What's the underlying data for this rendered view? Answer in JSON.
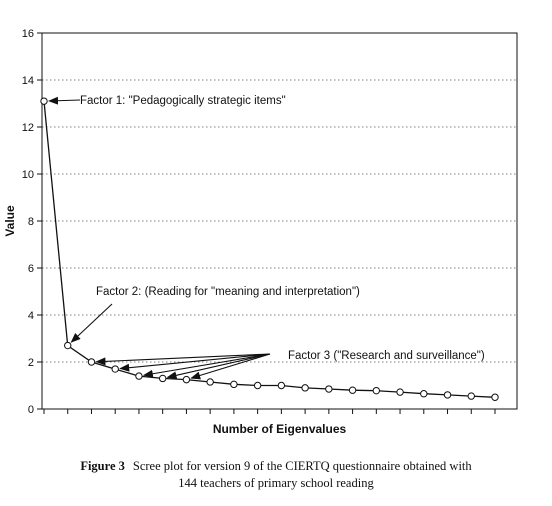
{
  "chart_data": {
    "type": "line",
    "xlabel": "Number of Eigenvalues",
    "ylabel": "Value",
    "ylim": [
      0,
      16
    ],
    "yticks": [
      0,
      2,
      4,
      6,
      8,
      10,
      12,
      14,
      16
    ],
    "xticks_labeled": false,
    "grid": "horizontal dotted",
    "x": [
      1,
      2,
      3,
      4,
      5,
      6,
      7,
      8,
      9,
      10,
      11,
      12,
      13,
      14,
      15,
      16,
      17,
      18,
      19,
      20
    ],
    "values": [
      13.1,
      2.7,
      2.0,
      1.7,
      1.4,
      1.3,
      1.25,
      1.15,
      1.05,
      1.0,
      1.0,
      0.9,
      0.85,
      0.8,
      0.78,
      0.72,
      0.65,
      0.6,
      0.55,
      0.5
    ],
    "annotations": [
      {
        "text": "Factor 1: \"Pedagogically strategic items\"",
        "points_to": [
          1
        ]
      },
      {
        "text": "Factor 2:  (Reading for \"meaning and interpretation\")",
        "points_to": [
          2
        ]
      },
      {
        "text": "Factor 3 (\"Research and surveillance\")",
        "points_to": [
          3,
          4,
          5,
          6,
          7
        ]
      }
    ]
  },
  "caption": {
    "label": "Figure 3",
    "line1": "Scree plot for version 9 of the CIERTQ questionnaire obtained with",
    "line2": "144 teachers of primary school reading"
  }
}
